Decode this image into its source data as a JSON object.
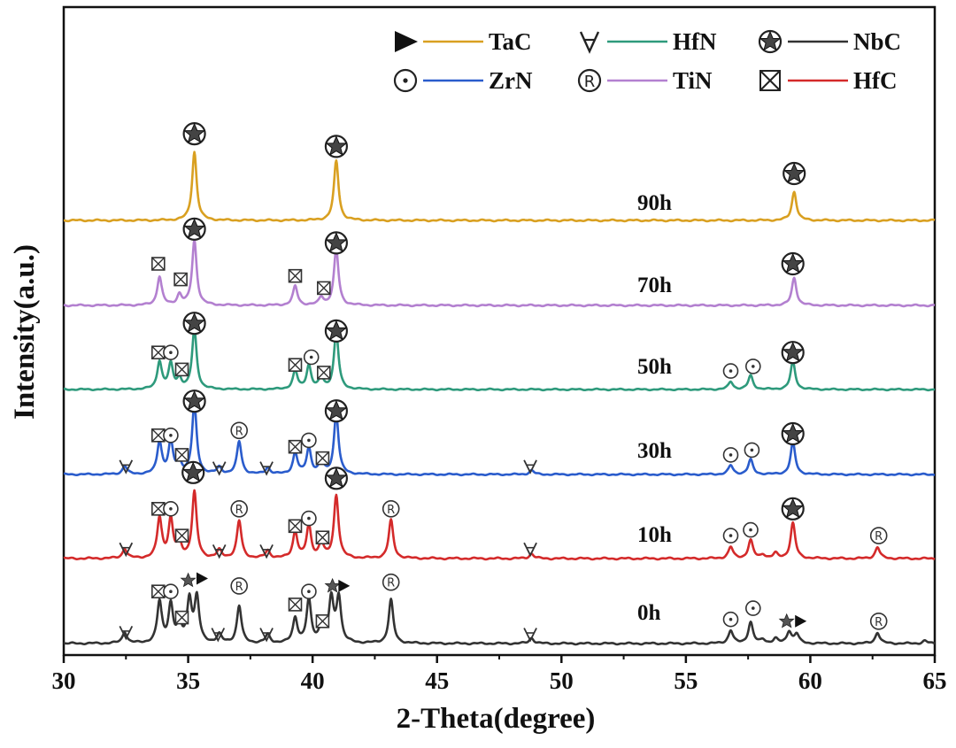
{
  "chart_data": {
    "type": "line",
    "title": "",
    "xlabel": "2-Theta(degree)",
    "ylabel": "Intensity(a.u.)",
    "xlim": [
      30,
      65
    ],
    "xticks": [
      "30",
      "35",
      "40",
      "45",
      "50",
      "55",
      "60",
      "65"
    ],
    "grid": false,
    "legend_position": "top-right",
    "legend": [
      {
        "label": "TaC",
        "color": "#d9a021",
        "symbol": "filled-triangle"
      },
      {
        "label": "HfN",
        "color": "#2e9a7c",
        "symbol": "inverted-a"
      },
      {
        "label": "NbC",
        "color": "#333333",
        "symbol": "circled-star"
      },
      {
        "label": "ZrN",
        "color": "#2a5ccc",
        "symbol": "circled-dot"
      },
      {
        "label": "TiN",
        "color": "#b380d0",
        "symbol": "circled-r"
      },
      {
        "label": "HfC",
        "color": "#d42a2a",
        "symbol": "boxed-x"
      }
    ],
    "series": [
      {
        "name": "0h",
        "color": "#333333",
        "baseline": 0,
        "peaks": [
          [
            32.45,
            1.2
          ],
          [
            33.85,
            4.4
          ],
          [
            34.3,
            4.1
          ],
          [
            34.65,
            1.9
          ],
          [
            35.05,
            4.6
          ],
          [
            35.35,
            4.8
          ],
          [
            36.25,
            0.9
          ],
          [
            37.05,
            4.0
          ],
          [
            38.2,
            0.9
          ],
          [
            39.3,
            2.7
          ],
          [
            39.85,
            4.6
          ],
          [
            40.35,
            1.8
          ],
          [
            40.75,
            4.7
          ],
          [
            41.05,
            4.9
          ],
          [
            43.15,
            4.7
          ],
          [
            48.8,
            0.6
          ],
          [
            56.8,
            1.4
          ],
          [
            57.6,
            2.3
          ],
          [
            58.1,
            0.4
          ],
          [
            58.6,
            0.5
          ],
          [
            59.15,
            1.3
          ],
          [
            59.45,
            1.0
          ],
          [
            62.7,
            1.2
          ],
          [
            64.6,
            0.3
          ]
        ],
        "label": "0h",
        "markers": [
          {
            "x": 32.5,
            "h": 0.12,
            "sym": "inverted-a"
          },
          {
            "x": 33.8,
            "h": 0.56,
            "sym": "boxed-x"
          },
          {
            "x": 34.3,
            "h": 0.56,
            "sym": "circled-dot"
          },
          {
            "x": 34.75,
            "h": 0.28,
            "sym": "boxed-x"
          },
          {
            "x": 35.0,
            "h": 0.68,
            "sym": "small-star"
          },
          {
            "x": 35.55,
            "h": 0.7,
            "sym": "filled-triangle"
          },
          {
            "x": 37.05,
            "h": 0.62,
            "sym": "circled-r"
          },
          {
            "x": 36.2,
            "h": 0.1,
            "sym": "inverted-a"
          },
          {
            "x": 38.15,
            "h": 0.1,
            "sym": "inverted-a"
          },
          {
            "x": 39.3,
            "h": 0.42,
            "sym": "boxed-x"
          },
          {
            "x": 39.85,
            "h": 0.56,
            "sym": "circled-dot"
          },
          {
            "x": 40.4,
            "h": 0.24,
            "sym": "boxed-x"
          },
          {
            "x": 40.8,
            "h": 0.62,
            "sym": "small-star"
          },
          {
            "x": 41.25,
            "h": 0.62,
            "sym": "filled-triangle"
          },
          {
            "x": 43.15,
            "h": 0.66,
            "sym": "circled-r"
          },
          {
            "x": 48.75,
            "h": 0.1,
            "sym": "inverted-a"
          },
          {
            "x": 56.8,
            "h": 0.26,
            "sym": "circled-dot"
          },
          {
            "x": 57.7,
            "h": 0.38,
            "sym": "circled-dot"
          },
          {
            "x": 59.05,
            "h": 0.24,
            "sym": "small-star"
          },
          {
            "x": 59.6,
            "h": 0.24,
            "sym": "filled-triangle"
          },
          {
            "x": 62.75,
            "h": 0.24,
            "sym": "circled-r"
          }
        ]
      },
      {
        "name": "10h",
        "color": "#d42a2a",
        "baseline": 1,
        "peaks": [
          [
            32.45,
            1.0
          ],
          [
            33.85,
            4.2
          ],
          [
            34.3,
            4.0
          ],
          [
            34.65,
            1.5
          ],
          [
            35.25,
            6.9
          ],
          [
            36.25,
            0.8
          ],
          [
            37.05,
            3.9
          ],
          [
            38.2,
            0.8
          ],
          [
            39.3,
            2.8
          ],
          [
            39.85,
            3.4
          ],
          [
            40.35,
            1.6
          ],
          [
            40.95,
            6.6
          ],
          [
            43.15,
            4.0
          ],
          [
            48.8,
            0.5
          ],
          [
            56.8,
            1.2
          ],
          [
            57.6,
            1.9
          ],
          [
            58.1,
            0.4
          ],
          [
            58.6,
            0.5
          ],
          [
            59.3,
            3.7
          ],
          [
            62.7,
            1.2
          ]
        ],
        "label": "10h",
        "markers": [
          {
            "x": 32.5,
            "h": 0.1,
            "sym": "inverted-a"
          },
          {
            "x": 33.8,
            "h": 0.52,
            "sym": "boxed-x"
          },
          {
            "x": 34.3,
            "h": 0.52,
            "sym": "circled-dot"
          },
          {
            "x": 34.75,
            "h": 0.24,
            "sym": "boxed-x"
          },
          {
            "x": 35.2,
            "h": 0.9,
            "sym": "circled-star"
          },
          {
            "x": 37.05,
            "h": 0.52,
            "sym": "circled-r"
          },
          {
            "x": 36.25,
            "h": 0.08,
            "sym": "inverted-a"
          },
          {
            "x": 38.15,
            "h": 0.08,
            "sym": "inverted-a"
          },
          {
            "x": 39.3,
            "h": 0.34,
            "sym": "boxed-x"
          },
          {
            "x": 39.85,
            "h": 0.42,
            "sym": "circled-dot"
          },
          {
            "x": 40.4,
            "h": 0.22,
            "sym": "boxed-x"
          },
          {
            "x": 40.95,
            "h": 0.84,
            "sym": "circled-star"
          },
          {
            "x": 43.15,
            "h": 0.52,
            "sym": "circled-r"
          },
          {
            "x": 48.75,
            "h": 0.1,
            "sym": "inverted-a"
          },
          {
            "x": 56.8,
            "h": 0.24,
            "sym": "circled-dot"
          },
          {
            "x": 57.6,
            "h": 0.3,
            "sym": "circled-dot"
          },
          {
            "x": 59.3,
            "h": 0.52,
            "sym": "circled-star"
          },
          {
            "x": 62.75,
            "h": 0.24,
            "sym": "circled-r"
          }
        ]
      },
      {
        "name": "30h",
        "color": "#2a5ccc",
        "baseline": 2,
        "peaks": [
          [
            32.45,
            1.0
          ],
          [
            33.85,
            4.0
          ],
          [
            34.3,
            3.9
          ],
          [
            34.65,
            1.4
          ],
          [
            35.25,
            8.6
          ],
          [
            36.25,
            0.8
          ],
          [
            37.05,
            4.0
          ],
          [
            38.2,
            0.8
          ],
          [
            39.3,
            2.6
          ],
          [
            39.85,
            3.2
          ],
          [
            40.35,
            1.6
          ],
          [
            40.95,
            7.4
          ],
          [
            48.8,
            0.5
          ],
          [
            56.8,
            1.1
          ],
          [
            57.6,
            1.8
          ],
          [
            59.3,
            3.9
          ]
        ],
        "label": "30h",
        "markers": [
          {
            "x": 32.5,
            "h": 0.1,
            "sym": "inverted-a"
          },
          {
            "x": 33.8,
            "h": 0.48,
            "sym": "boxed-x"
          },
          {
            "x": 34.3,
            "h": 0.48,
            "sym": "circled-dot"
          },
          {
            "x": 34.75,
            "h": 0.24,
            "sym": "boxed-x"
          },
          {
            "x": 35.25,
            "h": 0.9,
            "sym": "circled-star"
          },
          {
            "x": 37.05,
            "h": 0.54,
            "sym": "circled-r"
          },
          {
            "x": 36.25,
            "h": 0.08,
            "sym": "inverted-a"
          },
          {
            "x": 38.15,
            "h": 0.08,
            "sym": "inverted-a"
          },
          {
            "x": 39.3,
            "h": 0.34,
            "sym": "boxed-x"
          },
          {
            "x": 39.85,
            "h": 0.42,
            "sym": "circled-dot"
          },
          {
            "x": 40.4,
            "h": 0.2,
            "sym": "boxed-x"
          },
          {
            "x": 40.95,
            "h": 0.78,
            "sym": "circled-star"
          },
          {
            "x": 48.75,
            "h": 0.1,
            "sym": "inverted-a"
          },
          {
            "x": 56.8,
            "h": 0.24,
            "sym": "circled-dot"
          },
          {
            "x": 57.65,
            "h": 0.3,
            "sym": "circled-dot"
          },
          {
            "x": 59.3,
            "h": 0.5,
            "sym": "circled-star"
          }
        ]
      },
      {
        "name": "50h",
        "color": "#2e9a7c",
        "baseline": 3,
        "peaks": [
          [
            33.85,
            3.6
          ],
          [
            34.3,
            3.2
          ],
          [
            34.65,
            1.3
          ],
          [
            35.25,
            7.8
          ],
          [
            39.3,
            2.4
          ],
          [
            39.85,
            3.1
          ],
          [
            40.35,
            1.5
          ],
          [
            40.95,
            7.4
          ],
          [
            56.8,
            1.0
          ],
          [
            57.6,
            1.8
          ],
          [
            59.3,
            3.6
          ]
        ],
        "label": "50h",
        "markers": [
          {
            "x": 33.8,
            "h": 0.48,
            "sym": "boxed-x"
          },
          {
            "x": 34.3,
            "h": 0.48,
            "sym": "circled-dot"
          },
          {
            "x": 34.75,
            "h": 0.26,
            "sym": "boxed-x"
          },
          {
            "x": 35.25,
            "h": 0.86,
            "sym": "circled-star"
          },
          {
            "x": 39.3,
            "h": 0.32,
            "sym": "boxed-x"
          },
          {
            "x": 39.95,
            "h": 0.42,
            "sym": "circled-dot"
          },
          {
            "x": 40.45,
            "h": 0.22,
            "sym": "boxed-x"
          },
          {
            "x": 40.95,
            "h": 0.76,
            "sym": "circled-star"
          },
          {
            "x": 56.8,
            "h": 0.24,
            "sym": "circled-dot"
          },
          {
            "x": 57.7,
            "h": 0.3,
            "sym": "circled-dot"
          },
          {
            "x": 59.3,
            "h": 0.48,
            "sym": "circled-star"
          }
        ]
      },
      {
        "name": "70h",
        "color": "#b380d0",
        "baseline": 4,
        "peaks": [
          [
            33.85,
            3.3
          ],
          [
            34.65,
            1.2
          ],
          [
            35.25,
            7.5
          ],
          [
            39.3,
            2.2
          ],
          [
            40.35,
            0.9
          ],
          [
            40.95,
            6.4
          ],
          [
            59.35,
            3.2
          ]
        ],
        "label": "70h",
        "markers": [
          {
            "x": 33.8,
            "h": 0.48,
            "sym": "boxed-x"
          },
          {
            "x": 34.7,
            "h": 0.3,
            "sym": "boxed-x"
          },
          {
            "x": 35.25,
            "h": 0.88,
            "sym": "circled-star"
          },
          {
            "x": 39.3,
            "h": 0.34,
            "sym": "boxed-x"
          },
          {
            "x": 40.45,
            "h": 0.2,
            "sym": "boxed-x"
          },
          {
            "x": 40.95,
            "h": 0.72,
            "sym": "circled-star"
          },
          {
            "x": 59.3,
            "h": 0.48,
            "sym": "circled-star"
          }
        ]
      },
      {
        "name": "90h",
        "color": "#d9a021",
        "baseline": 5,
        "peaks": [
          [
            35.25,
            7.6
          ],
          [
            40.95,
            6.6
          ],
          [
            59.35,
            3.2
          ]
        ],
        "label": "90h",
        "markers": [
          {
            "x": 35.25,
            "h": 0.96,
            "sym": "circled-star"
          },
          {
            "x": 40.95,
            "h": 0.82,
            "sym": "circled-star"
          },
          {
            "x": 59.35,
            "h": 0.52,
            "sym": "circled-star"
          }
        ]
      }
    ]
  }
}
